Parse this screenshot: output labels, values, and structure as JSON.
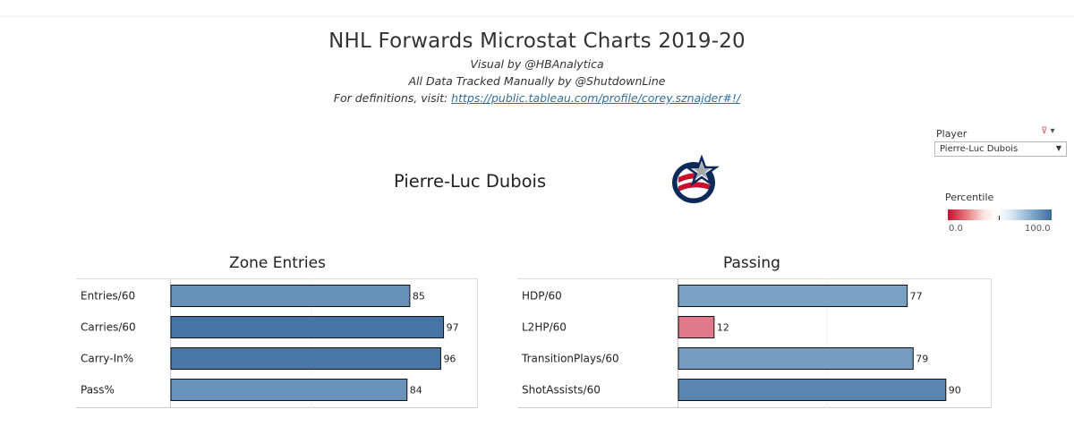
{
  "header": {
    "title": "NHL Forwards Microstat Charts 2019-20",
    "visual_by": "Visual by @HBAnalytica",
    "tracked_by": "All Data Tracked Manually by @ShutdownLine",
    "definitions_prefix": "For definitions, visit: ",
    "definitions_link": "https://public.tableau.com/profile/corey.sznajder#!/"
  },
  "player": {
    "name": "Pierre-Luc Dubois",
    "logo_icon": "columbus-blue-jackets-logo"
  },
  "filter": {
    "label": "Player",
    "selected": "Pierre-Luc Dubois"
  },
  "legend": {
    "title": "Percentile",
    "min": "0.0",
    "max": "100.0",
    "low_color": "#c8102e",
    "high_color": "#3f6d9e"
  },
  "chart_data": [
    {
      "type": "bar",
      "orientation": "horizontal",
      "title": "Zone Entries",
      "categories": [
        "Entries/60",
        "Carries/60",
        "Carry-In%",
        "Pass%"
      ],
      "values": [
        85,
        97,
        96,
        84
      ],
      "xlim": [
        0,
        100
      ],
      "color_scale": "percentile"
    },
    {
      "type": "bar",
      "orientation": "horizontal",
      "title": "Passing",
      "categories": [
        "HDP/60",
        "L2HP/60",
        "TransitionPlays/60",
        "ShotAssists/60"
      ],
      "values": [
        77,
        12,
        79,
        90
      ],
      "xlim": [
        0,
        100
      ],
      "color_scale": "percentile"
    }
  ]
}
